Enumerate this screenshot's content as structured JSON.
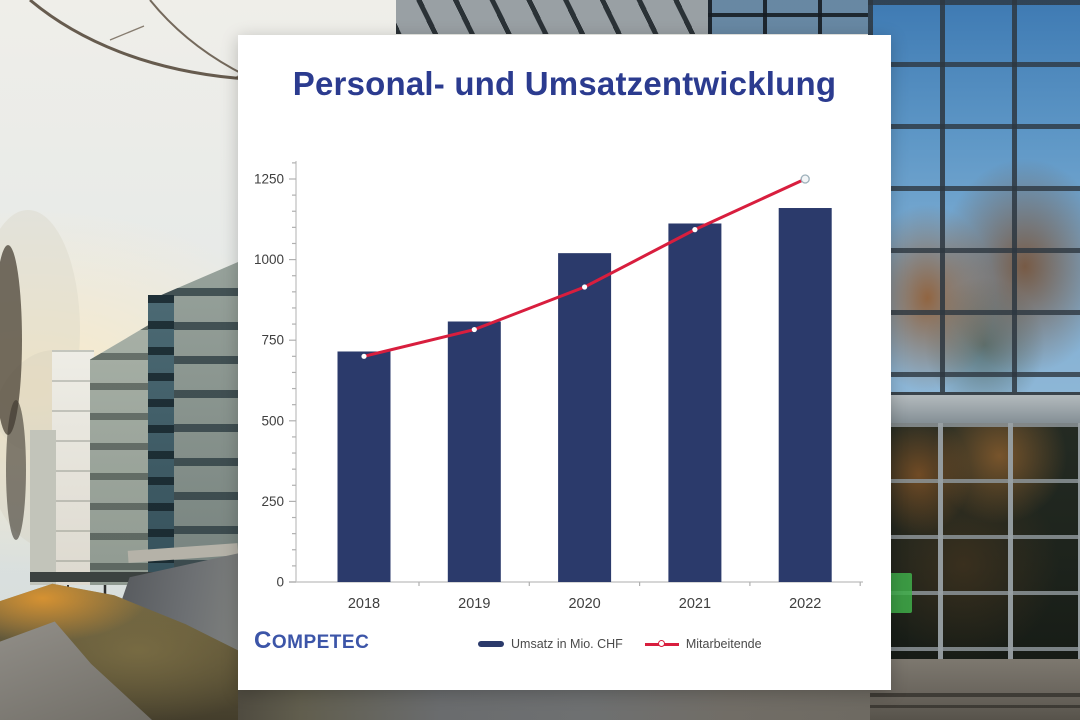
{
  "card": {
    "title": "Personal- und Umsatzentwicklung",
    "logo_first": "C",
    "logo_rest": "OMPETEC"
  },
  "legend": {
    "items": [
      {
        "label": "Umsatz in Mio. CHF",
        "type": "bar",
        "color": "#2b3a6b"
      },
      {
        "label": "Mitarbeitende",
        "type": "line",
        "color": "#d81e3e"
      }
    ]
  },
  "chart_data": {
    "type": "bar+line",
    "title": "Personal- und Umsatzentwicklung",
    "categories": [
      "2018",
      "2019",
      "2020",
      "2021",
      "2022"
    ],
    "series": [
      {
        "name": "Umsatz in Mio. CHF",
        "type": "bar",
        "color": "#2b3a6b",
        "values": [
          715,
          808,
          1020,
          1112,
          1160
        ]
      },
      {
        "name": "Mitarbeitende",
        "type": "line",
        "color": "#d81e3e",
        "values": [
          700,
          783,
          915,
          1093,
          1250
        ]
      }
    ],
    "xlabel": "",
    "ylabel": "",
    "ylim": [
      0,
      1300
    ],
    "y_ticks": [
      0,
      250,
      500,
      750,
      1000,
      1250
    ],
    "minor_tick_step": 50,
    "grid": false,
    "legend_position": "bottom"
  },
  "colors": {
    "title": "#2b3b8f",
    "logo": "#3c55a8",
    "bar": "#2b3a6b",
    "line": "#d81e3e",
    "axis": "#c8c8c8",
    "tick": "#b0b0b0",
    "tick_label": "#3f3f3f"
  }
}
